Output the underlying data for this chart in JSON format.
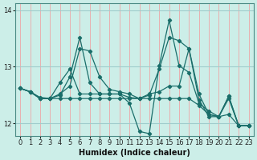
{
  "xlabel": "Humidex (Indice chaleur)",
  "bg_color": "#cceee8",
  "vgrid_color": "#e8b0b0",
  "hgrid_color": "#a0cccc",
  "line_color": "#1a6e6a",
  "xlim": [
    -0.5,
    23.5
  ],
  "ylim": [
    11.78,
    14.12
  ],
  "yticks": [
    12,
    13,
    14
  ],
  "xticks": [
    0,
    1,
    2,
    3,
    4,
    5,
    6,
    7,
    8,
    9,
    10,
    11,
    12,
    13,
    14,
    15,
    16,
    17,
    18,
    19,
    20,
    21,
    22,
    23
  ],
  "series": [
    [
      12.62,
      12.56,
      12.46,
      12.44,
      12.52,
      12.66,
      13.32,
      13.28,
      12.82,
      12.6,
      12.56,
      12.52,
      12.44,
      12.5,
      12.96,
      13.52,
      13.46,
      13.32,
      12.52,
      12.16,
      12.12,
      12.48,
      11.96,
      11.96
    ],
    [
      12.62,
      12.56,
      12.44,
      12.44,
      12.5,
      12.82,
      13.52,
      12.72,
      12.52,
      12.52,
      12.52,
      12.36,
      11.86,
      11.82,
      13.02,
      13.82,
      13.02,
      12.9,
      12.36,
      12.22,
      12.12,
      12.48,
      11.96,
      11.96
    ],
    [
      12.62,
      12.56,
      12.44,
      12.44,
      12.72,
      12.96,
      12.52,
      12.52,
      12.52,
      12.52,
      12.52,
      12.46,
      12.44,
      12.52,
      12.56,
      12.66,
      12.66,
      13.32,
      12.42,
      12.12,
      12.12,
      12.44,
      11.96,
      11.96
    ],
    [
      12.62,
      12.56,
      12.44,
      12.44,
      12.44,
      12.44,
      12.44,
      12.44,
      12.44,
      12.44,
      12.44,
      12.44,
      12.44,
      12.44,
      12.44,
      12.44,
      12.44,
      12.44,
      12.32,
      12.16,
      12.12,
      12.16,
      11.96,
      11.96
    ]
  ]
}
